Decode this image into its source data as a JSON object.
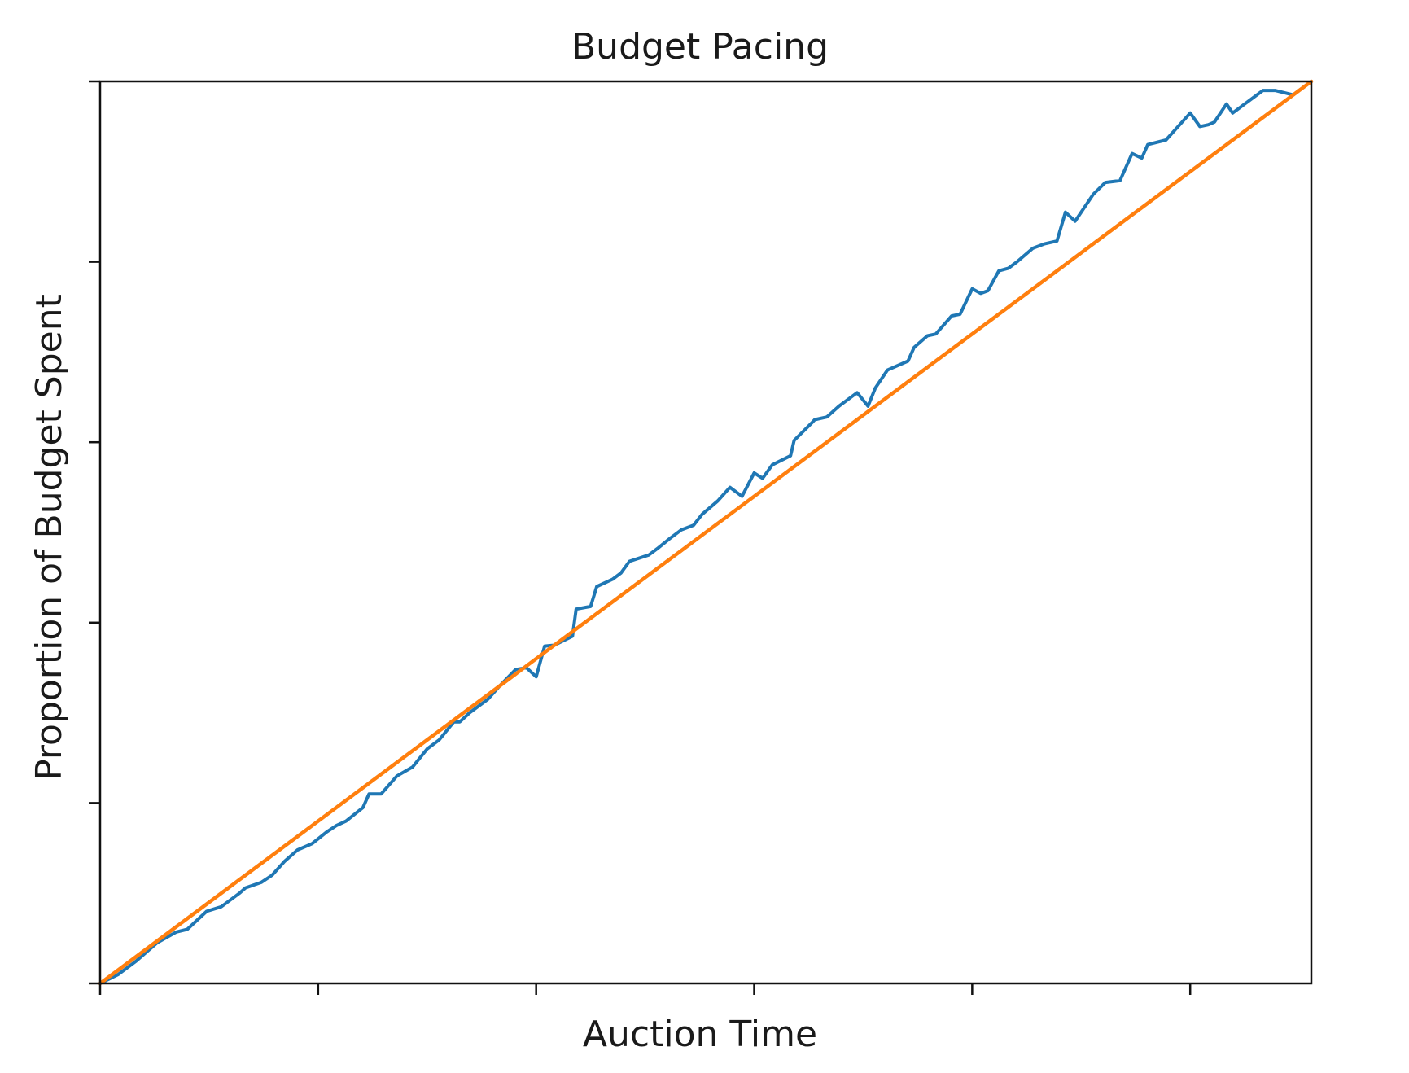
{
  "chart_data": {
    "type": "line",
    "title": "Budget Pacing",
    "xlabel": "Auction Time",
    "ylabel": "Proportion of Budget Spent",
    "xlim": [
      0,
      1
    ],
    "ylim": [
      0,
      1
    ],
    "xticks": [
      0,
      0.18,
      0.36,
      0.54,
      0.72,
      0.9
    ],
    "yticks": [
      0,
      0.2,
      0.4,
      0.6,
      0.8,
      1.0
    ],
    "tick_labels_shown": false,
    "grid": false,
    "legend": "none",
    "series": [
      {
        "color": "#1f77b4",
        "x": [
          0,
          0.015,
          0.03,
          0.047,
          0.063,
          0.072,
          0.088,
          0.1,
          0.115,
          0.12,
          0.133,
          0.142,
          0.152,
          0.163,
          0.175,
          0.187,
          0.195,
          0.203,
          0.217,
          0.222,
          0.232,
          0.245,
          0.258,
          0.27,
          0.28,
          0.292,
          0.297,
          0.305,
          0.32,
          0.33,
          0.343,
          0.352,
          0.36,
          0.367,
          0.375,
          0.39,
          0.393,
          0.405,
          0.41,
          0.423,
          0.43,
          0.437,
          0.453,
          0.46,
          0.47,
          0.48,
          0.49,
          0.497,
          0.51,
          0.52,
          0.53,
          0.54,
          0.547,
          0.555,
          0.57,
          0.573,
          0.588,
          0.59,
          0.6,
          0.61,
          0.62,
          0.625,
          0.634,
          0.64,
          0.65,
          0.667,
          0.672,
          0.683,
          0.69,
          0.703,
          0.71,
          0.72,
          0.727,
          0.733,
          0.742,
          0.75,
          0.757,
          0.77,
          0.78,
          0.79,
          0.797,
          0.805,
          0.815,
          0.82,
          0.83,
          0.842,
          0.852,
          0.86,
          0.865,
          0.88,
          0.89,
          0.9,
          0.908,
          0.915,
          0.92,
          0.93,
          0.935,
          0.945,
          0.96,
          0.97,
          0.985,
          1.0
        ],
        "y": [
          0,
          0.01,
          0.025,
          0.045,
          0.057,
          0.06,
          0.08,
          0.085,
          0.1,
          0.106,
          0.112,
          0.12,
          0.135,
          0.148,
          0.155,
          0.168,
          0.175,
          0.18,
          0.195,
          0.21,
          0.21,
          0.23,
          0.24,
          0.26,
          0.27,
          0.29,
          0.29,
          0.3,
          0.315,
          0.33,
          0.348,
          0.35,
          0.34,
          0.374,
          0.375,
          0.385,
          0.415,
          0.418,
          0.44,
          0.448,
          0.455,
          0.468,
          0.475,
          0.482,
          0.493,
          0.503,
          0.508,
          0.52,
          0.535,
          0.55,
          0.54,
          0.566,
          0.56,
          0.575,
          0.585,
          0.602,
          0.622,
          0.625,
          0.628,
          0.64,
          0.65,
          0.655,
          0.64,
          0.66,
          0.68,
          0.69,
          0.705,
          0.718,
          0.72,
          0.74,
          0.742,
          0.77,
          0.765,
          0.768,
          0.79,
          0.793,
          0.8,
          0.815,
          0.82,
          0.823,
          0.855,
          0.845,
          0.865,
          0.875,
          0.888,
          0.89,
          0.92,
          0.915,
          0.93,
          0.935,
          0.95,
          0.965,
          0.95,
          0.952,
          0.955,
          0.975,
          0.965,
          0.975,
          0.99,
          0.99,
          0.985,
          1.0
        ]
      },
      {
        "color": "#ff7f0e",
        "x": [
          0,
          1
        ],
        "y": [
          0,
          1
        ]
      }
    ]
  }
}
